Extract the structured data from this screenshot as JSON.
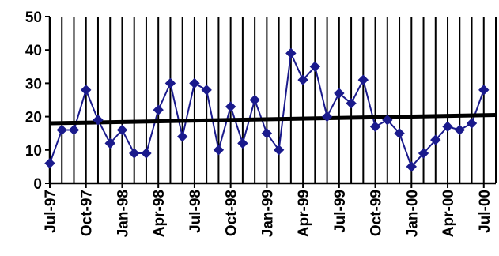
{
  "chart_data": {
    "type": "line",
    "title": "",
    "xlabel": "",
    "ylabel": "",
    "ylim": [
      0,
      50
    ],
    "y_ticks": [
      0,
      10,
      20,
      30,
      40,
      50
    ],
    "grid": "vertical",
    "legend": "none",
    "colors": {
      "series": "#1a1a8c",
      "trend": "#000000",
      "grid": "#000000"
    },
    "x": [
      "Jul-97",
      "Aug-97",
      "Sep-97",
      "Oct-97",
      "Nov-97",
      "Dec-97",
      "Jan-98",
      "Feb-98",
      "Mar-98",
      "Apr-98",
      "May-98",
      "Jun-98",
      "Jul-98",
      "Aug-98",
      "Sep-98",
      "Oct-98",
      "Nov-98",
      "Dec-98",
      "Jan-99",
      "Feb-99",
      "Mar-99",
      "Apr-99",
      "May-99",
      "Jun-99",
      "Jul-99",
      "Aug-99",
      "Sep-99",
      "Oct-99",
      "Nov-99",
      "Dec-99",
      "Jan-00",
      "Feb-00",
      "Mar-00",
      "Apr-00",
      "May-00",
      "Jun-00",
      "Jul-00"
    ],
    "x_tick_labels": [
      "Jul-97",
      "Oct-97",
      "Jan-98",
      "Apr-98",
      "Jul-98",
      "Oct-98",
      "Jan-99",
      "Apr-99",
      "Jul-99",
      "Oct-99",
      "Jan-00",
      "Apr-00",
      "Jul-00"
    ],
    "series": [
      {
        "values": [
          6,
          16,
          16,
          28,
          19,
          12,
          16,
          9,
          9,
          22,
          30,
          14,
          30,
          28,
          10,
          23,
          12,
          25,
          15,
          10,
          39,
          31,
          35,
          20,
          27,
          24,
          31,
          17,
          19,
          15,
          5,
          9,
          13,
          17,
          16,
          18,
          28
        ]
      }
    ],
    "trendline": {
      "start": 18,
      "end": 20.5
    }
  }
}
